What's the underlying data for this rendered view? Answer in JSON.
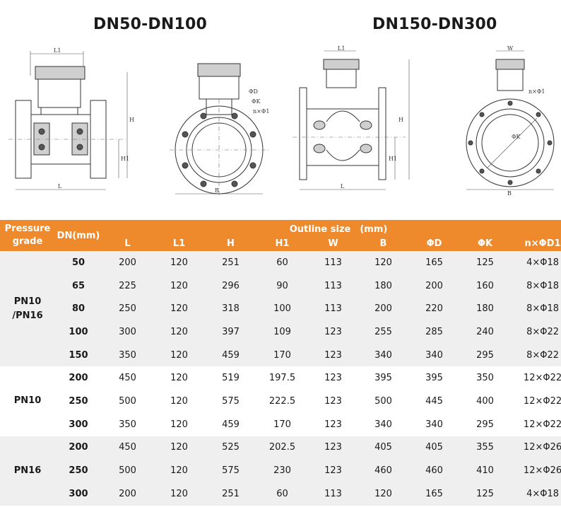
{
  "titles": {
    "left": "DN50-DN100",
    "right": "DN150-DN300"
  },
  "drawing_labels": {
    "L1": "L1",
    "L": "L",
    "H": "H",
    "H1": "H1",
    "B": "B",
    "phiD": "ΦD",
    "phiK": "ΦK",
    "nphiD": "n×Φ1",
    "W": "W",
    "phiK_right": "ΦK",
    "nphi_right": "n×Φ1"
  },
  "table": {
    "header_grade": "Pressure grade",
    "header_dn": "DN(mm)",
    "header_outline": "Outline size　(mm)",
    "columns": [
      "L",
      "L1",
      "H",
      "H1",
      "W",
      "B",
      "ΦD",
      "ΦK",
      "n×ΦD1"
    ],
    "groups": [
      {
        "grade": "PN10 /PN16",
        "rows": [
          {
            "dn": "50",
            "values": [
              "200",
              "120",
              "251",
              "60",
              "113",
              "120",
              "165",
              "125",
              "4×Φ18"
            ]
          },
          {
            "dn": "65",
            "values": [
              "225",
              "120",
              "296",
              "90",
              "113",
              "180",
              "200",
              "160",
              "8×Φ18"
            ]
          },
          {
            "dn": "80",
            "values": [
              "250",
              "120",
              "318",
              "100",
              "113",
              "200",
              "220",
              "180",
              "8×Φ18"
            ]
          },
          {
            "dn": "100",
            "values": [
              "300",
              "120",
              "397",
              "109",
              "123",
              "255",
              "285",
              "240",
              "8×Φ22"
            ]
          },
          {
            "dn": "150",
            "values": [
              "350",
              "120",
              "459",
              "170",
              "123",
              "340",
              "340",
              "295",
              "8×Φ22"
            ]
          }
        ]
      },
      {
        "grade": "PN10",
        "rows": [
          {
            "dn": "200",
            "values": [
              "450",
              "120",
              "519",
              "197.5",
              "123",
              "395",
              "395",
              "350",
              "12×Φ22"
            ]
          },
          {
            "dn": "250",
            "values": [
              "500",
              "120",
              "575",
              "222.5",
              "123",
              "500",
              "445",
              "400",
              "12×Φ22"
            ]
          },
          {
            "dn": "300",
            "values": [
              "350",
              "120",
              "459",
              "170",
              "123",
              "340",
              "340",
              "295",
              "12×Φ22"
            ]
          }
        ]
      },
      {
        "grade": "PN16",
        "rows": [
          {
            "dn": "200",
            "values": [
              "450",
              "120",
              "525",
              "202.5",
              "123",
              "405",
              "405",
              "355",
              "12×Φ26"
            ]
          },
          {
            "dn": "250",
            "values": [
              "500",
              "120",
              "575",
              "230",
              "123",
              "460",
              "460",
              "410",
              "12×Φ26"
            ]
          },
          {
            "dn": "300",
            "values": [
              "200",
              "120",
              "251",
              "60",
              "113",
              "120",
              "165",
              "125",
              "4×Φ18"
            ]
          }
        ]
      }
    ]
  },
  "colors": {
    "header_bg": "#ee8a2c",
    "header_text": "#ffffff",
    "band": "#efefef"
  }
}
